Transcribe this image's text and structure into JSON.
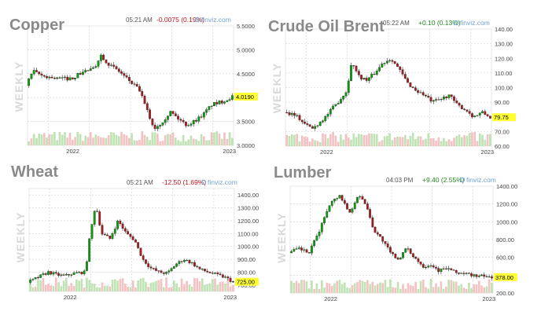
{
  "brand": "finviz.com",
  "chart_data": [
    {
      "type": "candlestick",
      "title": "Copper",
      "watermark": "WEEKLY",
      "time": "05:21 AM",
      "change": "-0.0075 (0.19%)",
      "change_dir": "neg",
      "last_label": "4.0190",
      "last": 4.019,
      "ylim": [
        3.0,
        5.5
      ],
      "yticks": [
        "5.5000",
        "5.0000",
        "4.5000",
        "4.0000",
        "3.5000",
        "3.0000"
      ],
      "ytick_values": [
        5.5,
        5.0,
        4.5,
        4.0,
        3.5,
        3.0
      ],
      "x_labels": [
        "2022",
        "2023"
      ],
      "x_label_pos": [
        0.22,
        0.98
      ],
      "grid": true,
      "keypoints": [
        [
          0,
          4.25
        ],
        [
          0.03,
          4.55
        ],
        [
          0.08,
          4.45
        ],
        [
          0.15,
          4.4
        ],
        [
          0.22,
          4.4
        ],
        [
          0.28,
          4.55
        ],
        [
          0.33,
          4.6
        ],
        [
          0.36,
          4.9
        ],
        [
          0.4,
          4.7
        ],
        [
          0.45,
          4.55
        ],
        [
          0.5,
          4.35
        ],
        [
          0.55,
          4.15
        ],
        [
          0.58,
          3.8
        ],
        [
          0.62,
          3.35
        ],
        [
          0.65,
          3.45
        ],
        [
          0.7,
          3.7
        ],
        [
          0.74,
          3.55
        ],
        [
          0.78,
          3.42
        ],
        [
          0.82,
          3.52
        ],
        [
          0.86,
          3.65
        ],
        [
          0.9,
          3.85
        ],
        [
          0.94,
          3.9
        ],
        [
          0.97,
          3.95
        ],
        [
          1.0,
          4.02
        ]
      ]
    },
    {
      "type": "candlestick",
      "title": "Crude Oil Brent",
      "watermark": "WEEKLY",
      "time": "05:22 AM",
      "change": "+0.10 (0.13%)",
      "change_dir": "pos",
      "last_label": "79.75",
      "last": 79.75,
      "ylim": [
        60,
        140
      ],
      "yticks": [
        "140.00",
        "130.00",
        "120.00",
        "110.00",
        "100.00",
        "90.00",
        "80.00",
        "70.00",
        "60.00"
      ],
      "ytick_values": [
        140,
        130,
        120,
        110,
        100,
        90,
        80,
        70,
        60
      ],
      "x_labels": [
        "2022",
        "2023"
      ],
      "x_label_pos": [
        0.2,
        0.98
      ],
      "grid": true,
      "keypoints": [
        [
          0,
          83
        ],
        [
          0.05,
          82
        ],
        [
          0.1,
          75
        ],
        [
          0.14,
          72
        ],
        [
          0.2,
          80
        ],
        [
          0.26,
          90
        ],
        [
          0.3,
          97
        ],
        [
          0.33,
          118
        ],
        [
          0.36,
          108
        ],
        [
          0.4,
          105
        ],
        [
          0.44,
          110
        ],
        [
          0.48,
          117
        ],
        [
          0.52,
          120
        ],
        [
          0.56,
          112
        ],
        [
          0.6,
          103
        ],
        [
          0.64,
          98
        ],
        [
          0.68,
          95
        ],
        [
          0.72,
          90
        ],
        [
          0.76,
          92
        ],
        [
          0.8,
          95
        ],
        [
          0.84,
          88
        ],
        [
          0.88,
          85
        ],
        [
          0.92,
          80
        ],
        [
          0.96,
          83
        ],
        [
          1.0,
          79.75
        ]
      ]
    },
    {
      "type": "candlestick",
      "title": "Wheat",
      "watermark": "WEEKLY",
      "time": "05:21 AM",
      "change": "-12.50 (1.69%)",
      "change_dir": "neg",
      "last_label": "725.00",
      "last": 725,
      "ylim": [
        650,
        1450
      ],
      "yticks": [
        "1400.00",
        "1300.00",
        "1200.00",
        "1100.00",
        "1000.00",
        "900.00",
        "800.00",
        "700.00"
      ],
      "ytick_values": [
        1400,
        1300,
        1200,
        1100,
        1000,
        900,
        800,
        700
      ],
      "x_labels": [
        "2022",
        "2023"
      ],
      "x_label_pos": [
        0.2,
        0.98
      ],
      "grid": true,
      "keypoints": [
        [
          0,
          720
        ],
        [
          0.05,
          760
        ],
        [
          0.1,
          800
        ],
        [
          0.14,
          780
        ],
        [
          0.18,
          770
        ],
        [
          0.22,
          790
        ],
        [
          0.28,
          800
        ],
        [
          0.3,
          1050
        ],
        [
          0.33,
          1330
        ],
        [
          0.36,
          1100
        ],
        [
          0.4,
          1060
        ],
        [
          0.44,
          1200
        ],
        [
          0.48,
          1100
        ],
        [
          0.52,
          1050
        ],
        [
          0.56,
          900
        ],
        [
          0.6,
          830
        ],
        [
          0.64,
          800
        ],
        [
          0.68,
          790
        ],
        [
          0.72,
          860
        ],
        [
          0.76,
          900
        ],
        [
          0.8,
          870
        ],
        [
          0.84,
          820
        ],
        [
          0.88,
          800
        ],
        [
          0.92,
          780
        ],
        [
          0.96,
          760
        ],
        [
          1.0,
          725
        ]
      ]
    },
    {
      "type": "candlestick",
      "title": "Lumber",
      "watermark": "WEEKLY",
      "time": "04:03 PM",
      "change": "+9.40 (2.55%)",
      "change_dir": "pos",
      "last_label": "378.00",
      "last": 378,
      "ylim": [
        200,
        1400
      ],
      "yticks": [
        "1400.00",
        "1200.00",
        "1000.00",
        "800.00",
        "600.00",
        "400.00",
        "200.00"
      ],
      "ytick_values": [
        1400,
        1200,
        1000,
        800,
        600,
        400,
        200
      ],
      "x_labels": [
        "2022",
        "2023"
      ],
      "x_label_pos": [
        0.2,
        0.98
      ],
      "grid": true,
      "keypoints": [
        [
          0,
          650
        ],
        [
          0.05,
          700
        ],
        [
          0.1,
          650
        ],
        [
          0.15,
          900
        ],
        [
          0.2,
          1200
        ],
        [
          0.25,
          1300
        ],
        [
          0.3,
          1100
        ],
        [
          0.34,
          1300
        ],
        [
          0.38,
          1200
        ],
        [
          0.42,
          900
        ],
        [
          0.46,
          800
        ],
        [
          0.5,
          650
        ],
        [
          0.54,
          580
        ],
        [
          0.58,
          700
        ],
        [
          0.62,
          600
        ],
        [
          0.66,
          500
        ],
        [
          0.7,
          520
        ],
        [
          0.74,
          450
        ],
        [
          0.78,
          480
        ],
        [
          0.82,
          430
        ],
        [
          0.86,
          420
        ],
        [
          0.9,
          400
        ],
        [
          0.94,
          390
        ],
        [
          1.0,
          378
        ]
      ]
    }
  ]
}
